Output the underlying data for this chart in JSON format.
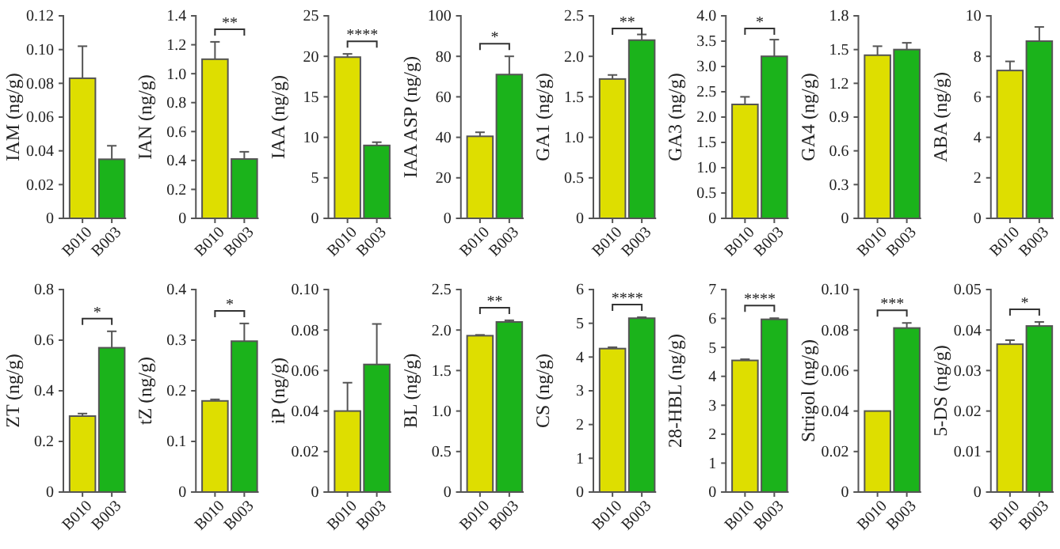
{
  "chart_data": [
    {
      "type": "bar",
      "ylabel": "IAM (ng/g)",
      "categories": [
        "B010",
        "B003"
      ],
      "values": [
        0.083,
        0.035
      ],
      "errors": [
        0.019,
        0.008
      ],
      "colors": [
        "#dede00",
        "#1bb31b"
      ],
      "ylim": [
        0,
        0.12
      ],
      "yticks": [
        0,
        0.02,
        0.04,
        0.06,
        0.08,
        {
          "value": 0.1,
          "label": "0.10"
        },
        0.12
      ]
    },
    {
      "type": "bar",
      "ylabel": "IAN (ng/g)",
      "categories": [
        "B010",
        "B003"
      ],
      "values": [
        1.1,
        0.41
      ],
      "errors": [
        0.12,
        0.05
      ],
      "colors": [
        "#dede00",
        "#1bb31b"
      ],
      "ylim": [
        0,
        1.4
      ],
      "yticks": [
        0,
        0.2,
        0.4,
        0.6,
        0.8,
        {
          "value": 1,
          "label": "1.0"
        },
        1.2,
        1.4
      ],
      "annotations": [
        "**"
      ]
    },
    {
      "type": "bar",
      "ylabel": "IAA (ng/g)",
      "categories": [
        "B010",
        "B003"
      ],
      "values": [
        19.9,
        9.0
      ],
      "errors": [
        0.4,
        0.4
      ],
      "colors": [
        "#dede00",
        "#1bb31b"
      ],
      "ylim": [
        0,
        25
      ],
      "yticks": [
        0,
        5,
        10,
        15,
        20,
        25
      ],
      "annotations": [
        "****"
      ]
    },
    {
      "type": "bar",
      "ylabel": "IAA ASP (ng/g)",
      "categories": [
        "B010",
        "B003"
      ],
      "values": [
        40.5,
        71
      ],
      "errors": [
        2,
        9
      ],
      "colors": [
        "#dede00",
        "#1bb31b"
      ],
      "ylim": [
        0,
        100
      ],
      "yticks": [
        0,
        20,
        40,
        60,
        80,
        100
      ],
      "annotations": [
        "*"
      ]
    },
    {
      "type": "bar",
      "ylabel": "GA1 (ng/g)",
      "categories": [
        "B010",
        "B003"
      ],
      "values": [
        1.72,
        2.2
      ],
      "errors": [
        0.05,
        0.07
      ],
      "colors": [
        "#dede00",
        "#1bb31b"
      ],
      "ylim": [
        0,
        2.5
      ],
      "yticks": [
        0,
        0.5,
        {
          "value": 1,
          "label": "1.0"
        },
        1.5,
        {
          "value": 2,
          "label": "2.0"
        },
        2.5
      ],
      "annotations": [
        "**"
      ]
    },
    {
      "type": "bar",
      "ylabel": "GA3 (ng/g)",
      "categories": [
        "B010",
        "B003"
      ],
      "values": [
        2.25,
        3.2
      ],
      "errors": [
        0.15,
        0.33
      ],
      "colors": [
        "#dede00",
        "#1bb31b"
      ],
      "ylim": [
        0,
        4
      ],
      "yticks": [
        0,
        0.5,
        {
          "value": 1,
          "label": "1.0"
        },
        1.5,
        {
          "value": 2,
          "label": "2.0"
        },
        2.5,
        {
          "value": 3,
          "label": "3.0"
        },
        3.5,
        {
          "value": 4,
          "label": "4.0"
        }
      ],
      "annotations": [
        "*"
      ]
    },
    {
      "type": "bar",
      "ylabel": "GA4 (ng/g)",
      "categories": [
        "B010",
        "B003"
      ],
      "values": [
        1.45,
        1.5
      ],
      "errors": [
        0.08,
        0.06
      ],
      "colors": [
        "#dede00",
        "#1bb31b"
      ],
      "ylim": [
        0,
        1.8
      ],
      "yticks": [
        0,
        0.3,
        0.6,
        0.9,
        1.2,
        1.5,
        1.8
      ]
    },
    {
      "type": "bar",
      "ylabel": "ABA (ng/g)",
      "categories": [
        "B010",
        "B003"
      ],
      "values": [
        7.3,
        8.75
      ],
      "errors": [
        0.45,
        0.7
      ],
      "colors": [
        "#dede00",
        "#1bb31b"
      ],
      "ylim": [
        0,
        10
      ],
      "yticks": [
        0,
        2,
        4,
        6,
        8,
        10
      ]
    },
    {
      "type": "bar",
      "ylabel": "ZT (ng/g)",
      "categories": [
        "B010",
        "B003"
      ],
      "values": [
        0.3,
        0.57
      ],
      "errors": [
        0.01,
        0.065
      ],
      "colors": [
        "#dede00",
        "#1bb31b"
      ],
      "ylim": [
        0,
        0.8
      ],
      "yticks": [
        0,
        0.2,
        0.4,
        0.6,
        0.8
      ],
      "annotations": [
        "*"
      ]
    },
    {
      "type": "bar",
      "ylabel": "tZ (ng/g)",
      "categories": [
        "B010",
        "B003"
      ],
      "values": [
        0.18,
        0.298
      ],
      "errors": [
        0.003,
        0.035
      ],
      "colors": [
        "#dede00",
        "#1bb31b"
      ],
      "ylim": [
        0,
        0.4
      ],
      "yticks": [
        0,
        0.1,
        0.2,
        0.3,
        0.4
      ],
      "annotations": [
        "*"
      ]
    },
    {
      "type": "bar",
      "ylabel": "iP (ng/g)",
      "categories": [
        "B010",
        "B003"
      ],
      "values": [
        0.04,
        0.063
      ],
      "errors": [
        0.014,
        0.02
      ],
      "colors": [
        "#dede00",
        "#1bb31b"
      ],
      "ylim": [
        0,
        0.1
      ],
      "yticks": [
        0,
        0.02,
        0.04,
        0.06,
        0.08,
        {
          "value": 0.1,
          "label": "0.10"
        }
      ]
    },
    {
      "type": "bar",
      "ylabel": "BL (ng/g)",
      "categories": [
        "B010",
        "B003"
      ],
      "values": [
        1.93,
        2.1
      ],
      "errors": [
        0.01,
        0.02
      ],
      "colors": [
        "#dede00",
        "#1bb31b"
      ],
      "ylim": [
        0,
        2.5
      ],
      "yticks": [
        0,
        0.5,
        {
          "value": 1,
          "label": "1.0"
        },
        1.5,
        {
          "value": 2,
          "label": "2.0"
        },
        2.5
      ],
      "annotations": [
        "**"
      ]
    },
    {
      "type": "bar",
      "ylabel": "CS (ng/g)",
      "categories": [
        "B010",
        "B003"
      ],
      "values": [
        4.25,
        5.15
      ],
      "errors": [
        0.04,
        0.03
      ],
      "colors": [
        "#dede00",
        "#1bb31b"
      ],
      "ylim": [
        0,
        6
      ],
      "yticks": [
        0,
        1,
        2,
        3,
        4,
        5,
        6
      ],
      "annotations": [
        "****"
      ]
    },
    {
      "type": "bar",
      "ylabel": "28-HBL (ng/g)",
      "categories": [
        "B010",
        "B003"
      ],
      "values": [
        4.55,
        5.97
      ],
      "errors": [
        0.04,
        0.04
      ],
      "colors": [
        "#dede00",
        "#1bb31b"
      ],
      "ylim": [
        0,
        7
      ],
      "yticks": [
        0,
        1,
        2,
        3,
        4,
        5,
        6,
        7
      ],
      "annotations": [
        "****"
      ]
    },
    {
      "type": "bar",
      "ylabel": "Strigol (ng/g)",
      "categories": [
        "B010",
        "B003"
      ],
      "values": [
        0.04,
        0.081
      ],
      "errors": [
        null,
        0.0025
      ],
      "colors": [
        "#dede00",
        "#1bb31b"
      ],
      "ylim": [
        0,
        0.1
      ],
      "yticks": [
        0,
        0.02,
        0.04,
        0.06,
        0.08,
        {
          "value": 0.1,
          "label": "0.10"
        }
      ],
      "annotations": [
        "***"
      ]
    },
    {
      "type": "bar",
      "ylabel": "5-DS (ng/g)",
      "categories": [
        "B010",
        "B003"
      ],
      "values": [
        0.0365,
        0.041
      ],
      "errors": [
        0.001,
        0.001
      ],
      "colors": [
        "#dede00",
        "#1bb31b"
      ],
      "ylim": [
        0,
        0.05
      ],
      "yticks": [
        0,
        0.01,
        0.02,
        0.03,
        0.04,
        0.05
      ],
      "annotations": [
        "*"
      ]
    }
  ]
}
